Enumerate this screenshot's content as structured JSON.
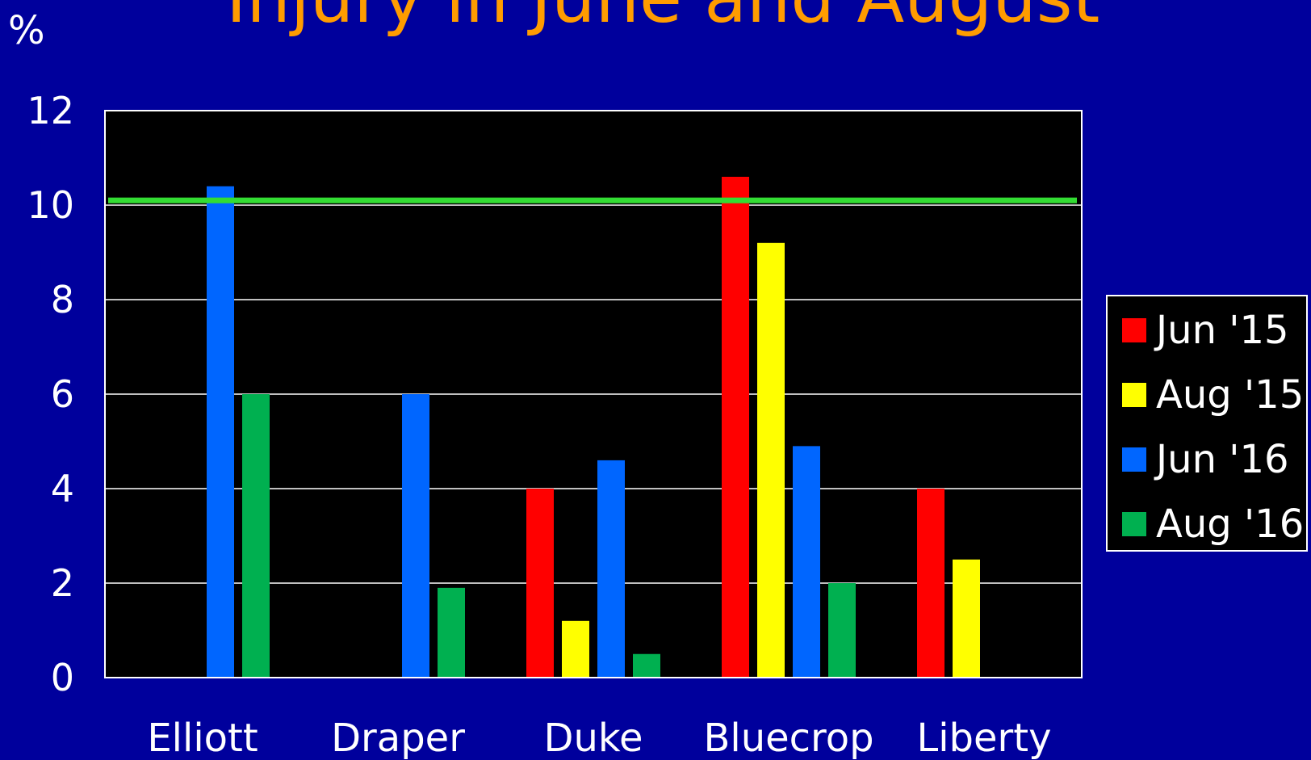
{
  "chart_data": {
    "type": "bar",
    "title": "Injury in June and August",
    "ylabel": "%",
    "categories": [
      "Elliott",
      "Draper",
      "Duke",
      "Bluecrop",
      "Liberty"
    ],
    "ylim": [
      0,
      12
    ],
    "yticks": [
      "0",
      "2",
      "4",
      "6",
      "8",
      "10",
      "12"
    ],
    "series": [
      {
        "name": "Jun '15",
        "color": "#ff0000",
        "values": [
          null,
          null,
          4.0,
          10.6,
          4.0
        ]
      },
      {
        "name": "Aug '15",
        "color": "#ffff00",
        "values": [
          null,
          null,
          1.2,
          9.2,
          2.5
        ]
      },
      {
        "name": "Jun '16",
        "color": "#0066ff",
        "values": [
          10.4,
          6.0,
          4.6,
          4.9,
          null
        ]
      },
      {
        "name": "Aug '16",
        "color": "#00b050",
        "values": [
          6.0,
          1.9,
          0.5,
          2.0,
          null
        ]
      }
    ],
    "reference_line": {
      "value": 10.1,
      "color": "#33dd33"
    },
    "grid": true,
    "legend_position": "right",
    "plot_background": "#000000"
  }
}
